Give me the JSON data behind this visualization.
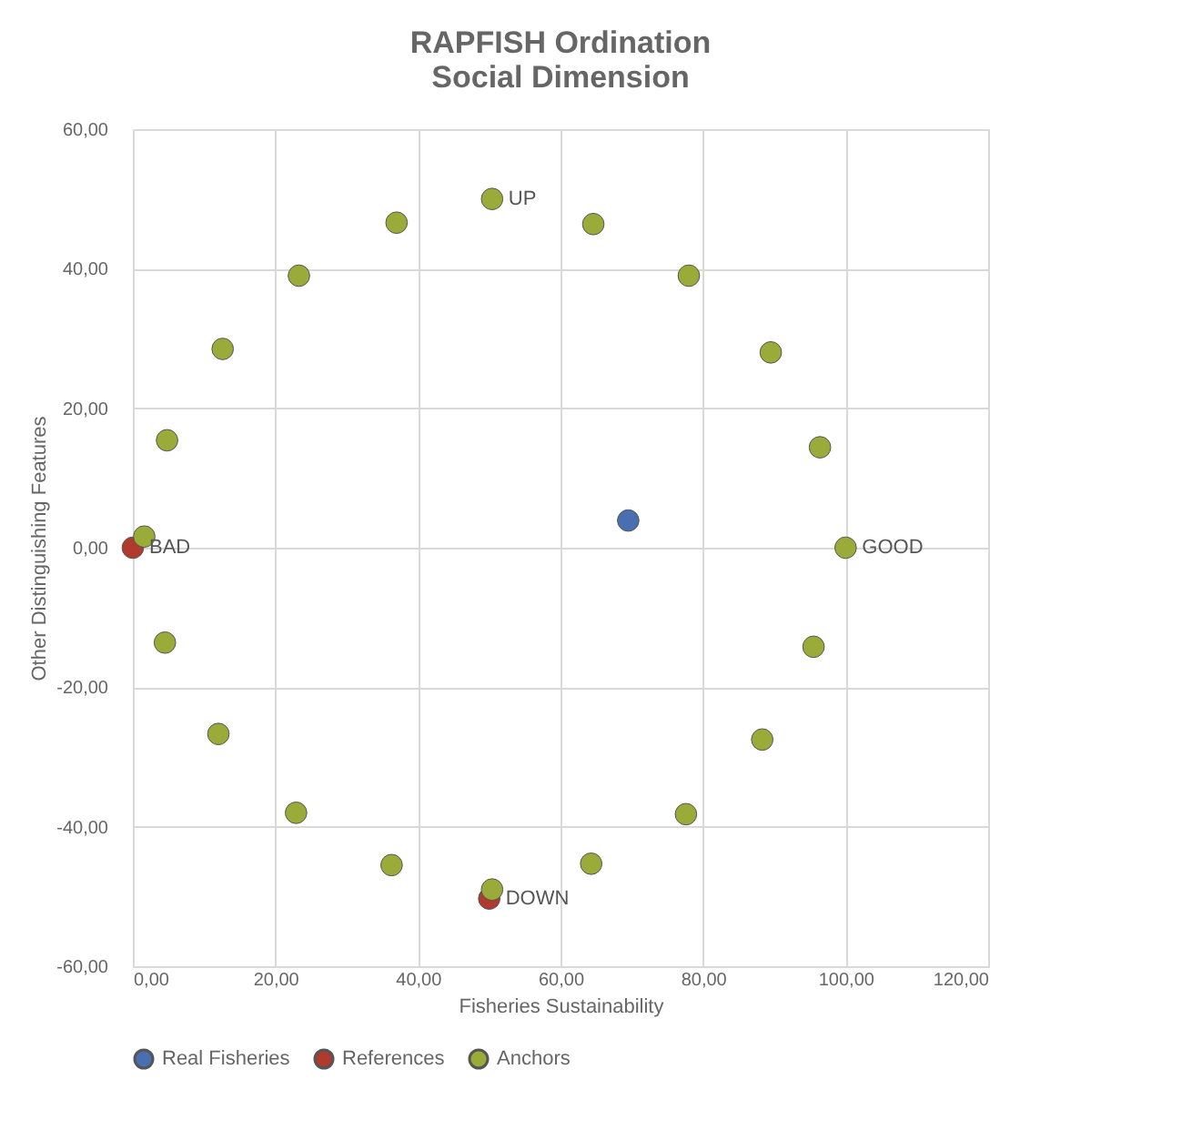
{
  "chart_data": {
    "type": "scatter",
    "title": [
      "RAPFISH Ordination",
      "Social Dimension"
    ],
    "xlabel": "Fisheries Sustainability",
    "ylabel": "Other Distinguishing Features",
    "series": [
      {
        "name": "Real Fisheries",
        "color": "#4a6fb0",
        "x": [
          69.5
        ],
        "values": [
          3.9
        ]
      },
      {
        "name": "References",
        "color": "#b03a2e",
        "x": [
          0,
          50
        ],
        "values": [
          0,
          -50.3
        ]
      },
      {
        "name": "Anchors",
        "color": "#9aab3a",
        "x": [
          1.6,
          4.8,
          12.6,
          23.3,
          37,
          50.4,
          64.6,
          78,
          89.5,
          96.4,
          100,
          95.5,
          88.3,
          77.6,
          64.3,
          50.4,
          36.3,
          22.9,
          12,
          4.5
        ],
        "values": [
          1.6,
          15.4,
          28.5,
          39,
          46.6,
          50,
          46.4,
          39,
          28,
          14.4,
          0,
          -14.2,
          -27.5,
          -38.2,
          -45.3,
          -49,
          -45.5,
          -38,
          -26.7,
          -13.6
        ]
      }
    ],
    "annotations": [
      {
        "text": "BAD",
        "x": 0,
        "y": 0
      },
      {
        "text": "UP",
        "x": 50.4,
        "y": 50
      },
      {
        "text": "GOOD",
        "x": 100,
        "y": 0
      },
      {
        "text": "DOWN",
        "x": 50,
        "y": -50.3
      }
    ],
    "xlim": [
      0,
      120
    ],
    "ylim": [
      -60,
      60
    ],
    "xticks": [
      {
        "value": 0,
        "label": "0,00"
      },
      {
        "value": 20,
        "label": "20,00"
      },
      {
        "value": 40,
        "label": "40,00"
      },
      {
        "value": 60,
        "label": "60,00"
      },
      {
        "value": 80,
        "label": "80,00"
      },
      {
        "value": 100,
        "label": "100,00"
      },
      {
        "value": 120,
        "label": "120,00"
      }
    ],
    "yticks": [
      {
        "value": -60,
        "label": "-60,00"
      },
      {
        "value": -40,
        "label": "-40,00"
      },
      {
        "value": -20,
        "label": "-20,00"
      },
      {
        "value": 0,
        "label": "0,00"
      },
      {
        "value": 20,
        "label": "20,00"
      },
      {
        "value": 40,
        "label": "40,00"
      },
      {
        "value": 60,
        "label": "60,00"
      }
    ],
    "grid": true,
    "legend": "bottom",
    "marker": "circle"
  }
}
